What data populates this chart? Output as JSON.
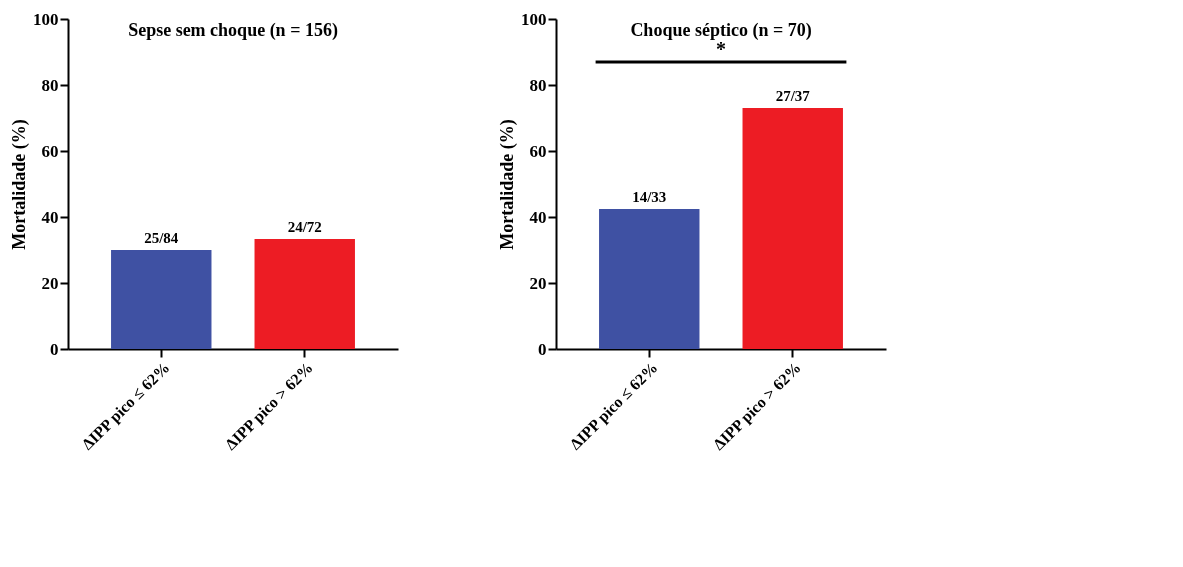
{
  "chart_data": [
    {
      "type": "bar",
      "title": "Sepse sem choque (n = 156)",
      "ylabel": "Mortalidade (%)",
      "categories": [
        "ΔIPP pico ≤ 62%",
        "ΔIPP pico > 62%"
      ],
      "values": [
        30,
        33.3
      ],
      "colors": [
        "#3f51a3",
        "#ed1c24"
      ],
      "value_labels": [
        "25/84",
        "24/72"
      ],
      "ylim": [
        0,
        100
      ],
      "yticks": [
        0,
        20,
        40,
        60,
        80,
        100
      ],
      "grid": false,
      "legend": false
    },
    {
      "type": "bar",
      "title": "Choque séptico (n = 70)",
      "ylabel": "Mortalidade (%)",
      "categories": [
        "ΔIPP pico ≤ 62%",
        "ΔIPP pico > 62%"
      ],
      "values": [
        42.4,
        73
      ],
      "colors": [
        "#3f51a3",
        "#ed1c24"
      ],
      "value_labels": [
        "14/33",
        "27/37"
      ],
      "ylim": [
        0,
        100
      ],
      "yticks": [
        0,
        20,
        40,
        60,
        80,
        100
      ],
      "grid": false,
      "legend": false,
      "ref_lines": [
        {
          "axis": "y",
          "value": 87,
          "label": "*"
        }
      ]
    }
  ]
}
